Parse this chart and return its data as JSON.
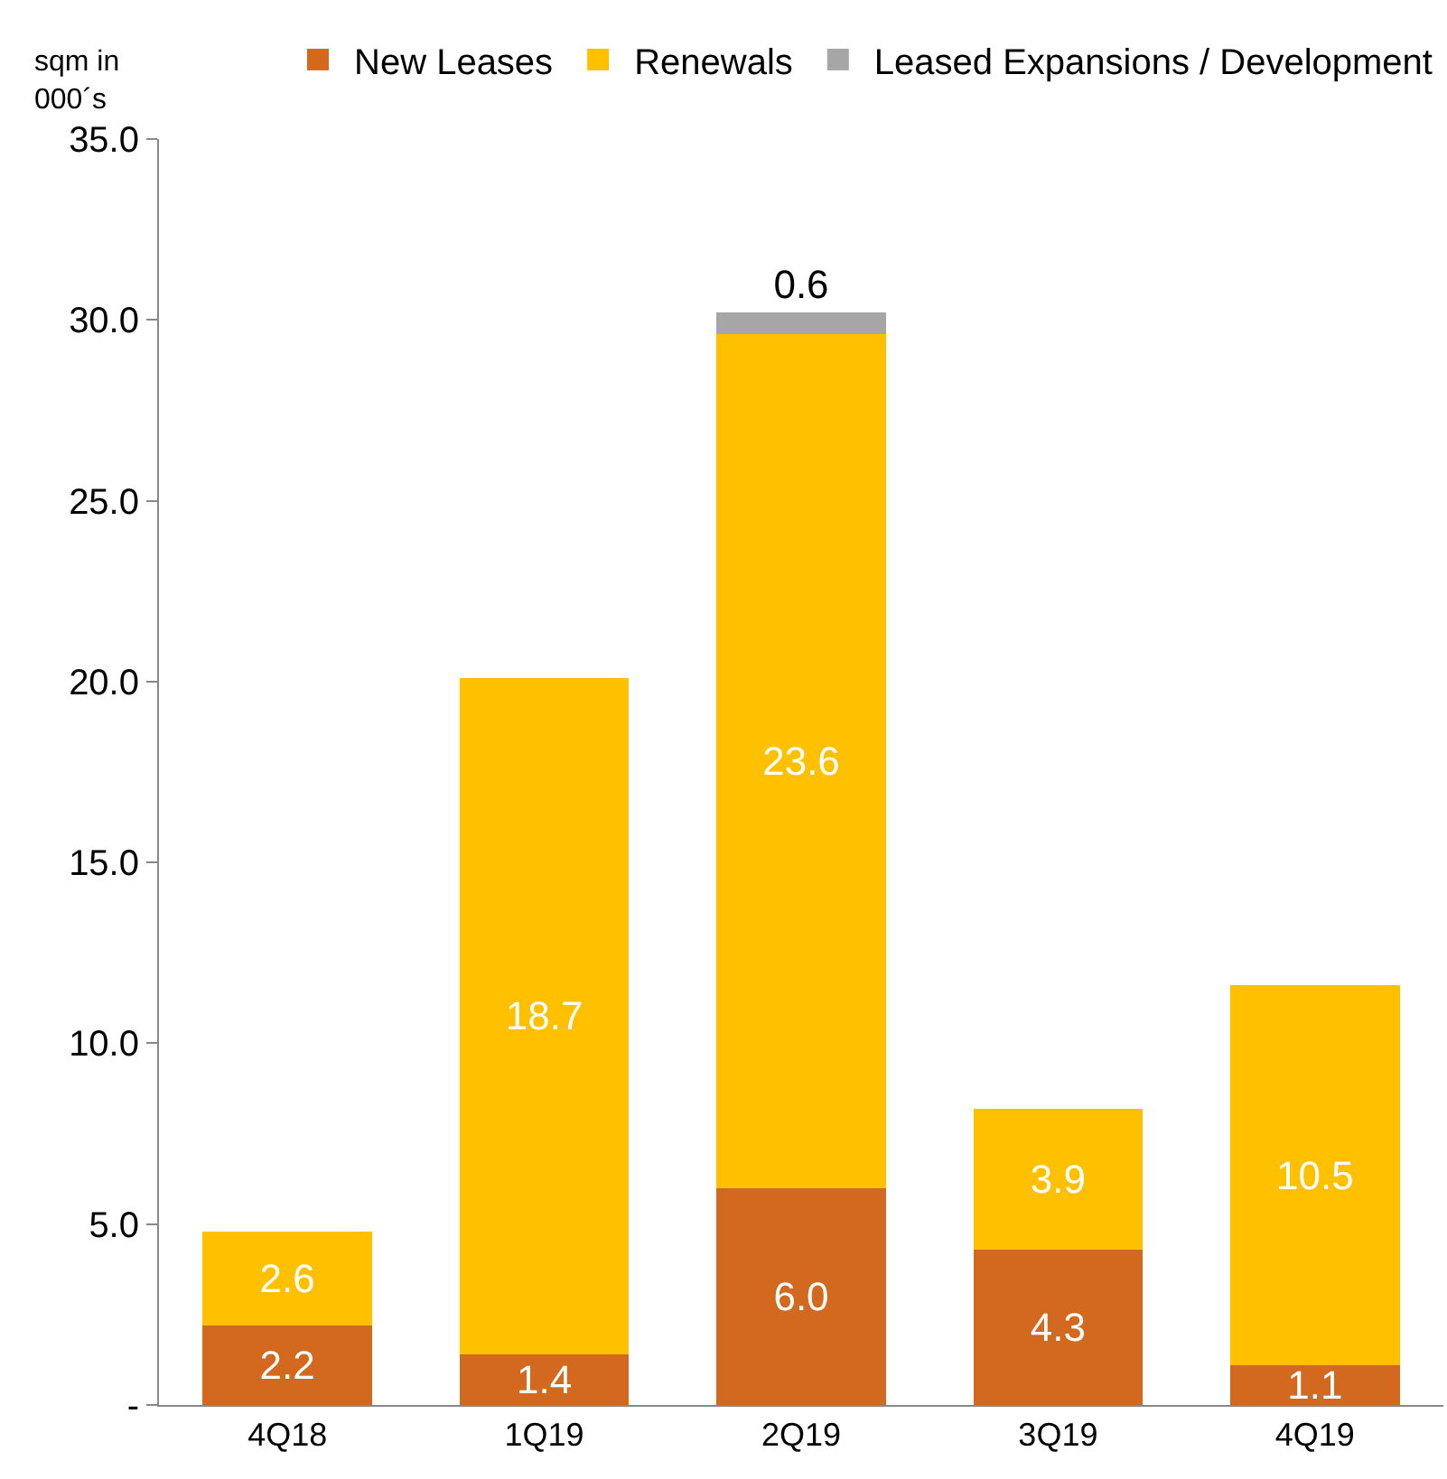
{
  "chart_data": {
    "type": "bar",
    "stacked": true,
    "ylabel": "sqm in 000´s",
    "categories": [
      "4Q18",
      "1Q19",
      "2Q19",
      "3Q19",
      "4Q19"
    ],
    "series": [
      {
        "name": "New Leases",
        "color": "#d2691e",
        "values": [
          2.2,
          1.4,
          6.0,
          4.3,
          1.1
        ],
        "value_labels": [
          "2.2",
          "1.4",
          "6.0",
          "4.3",
          "1.1"
        ]
      },
      {
        "name": "Renewals",
        "color": "#ffc000",
        "values": [
          2.6,
          18.7,
          23.6,
          3.9,
          10.5
        ],
        "value_labels": [
          "2.6",
          "18.7",
          "23.6",
          "3.9",
          "10.5"
        ]
      },
      {
        "name": "Leased Expansions / Development",
        "color": "#a6a6a6",
        "values": [
          null,
          null,
          0.6,
          null,
          null
        ],
        "value_labels": [
          null,
          null,
          "0.6",
          null,
          null
        ]
      }
    ],
    "ylim": [
      0,
      35
    ],
    "yticks": [
      {
        "value": 0,
        "label": "-"
      },
      {
        "value": 5,
        "label": "5.0"
      },
      {
        "value": 10,
        "label": "10.0"
      },
      {
        "value": 15,
        "label": "15.0"
      },
      {
        "value": 20,
        "label": "20.0"
      },
      {
        "value": 25,
        "label": "25.0"
      },
      {
        "value": 30,
        "label": "30.0"
      },
      {
        "value": 35,
        "label": "35.0"
      }
    ],
    "legend": "top right"
  }
}
